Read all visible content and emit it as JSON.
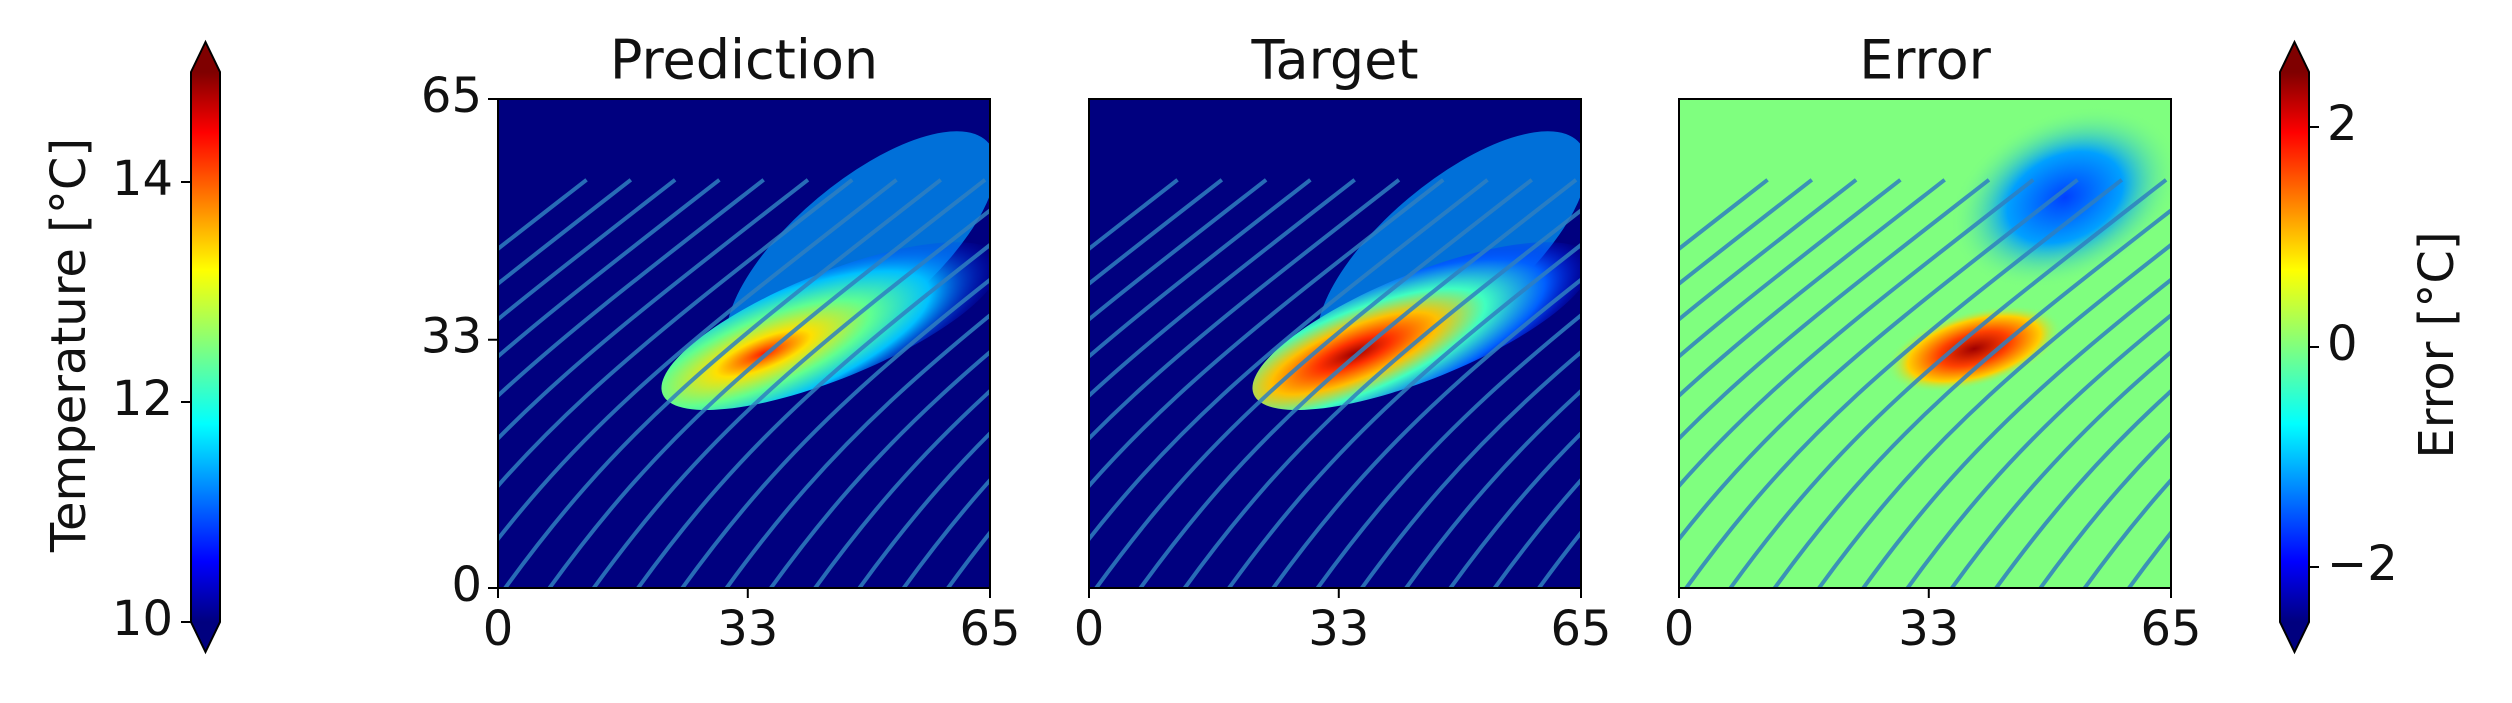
{
  "chart_data": [
    {
      "type": "heatmap",
      "title": "Prediction",
      "background": "#00007f",
      "xlim": [
        0,
        65
      ],
      "ylim": [
        0,
        65
      ],
      "xticks": [
        0,
        33,
        65
      ],
      "yticks": [
        0,
        33,
        65
      ],
      "colorbar": {
        "label": "Temperature [°C]",
        "lim": [
          10,
          15
        ],
        "ticks": [
          10,
          12,
          14
        ]
      }
    },
    {
      "type": "heatmap",
      "title": "Target",
      "background": "#00007f",
      "xlim": [
        0,
        65
      ],
      "ylim": [
        0,
        65
      ],
      "xticks": [
        0,
        33,
        65
      ]
    },
    {
      "type": "heatmap",
      "title": "Error",
      "background": "#7fff7f",
      "xlim": [
        0,
        65
      ],
      "ylim": [
        0,
        65
      ],
      "xticks": [
        0,
        33,
        65
      ],
      "colorbar": {
        "label": "Error [°C]",
        "lim": [
          -2.5,
          2.5
        ],
        "ticks": [
          {
            "value": -2,
            "label": "−2"
          },
          0,
          2
        ]
      }
    }
  ]
}
